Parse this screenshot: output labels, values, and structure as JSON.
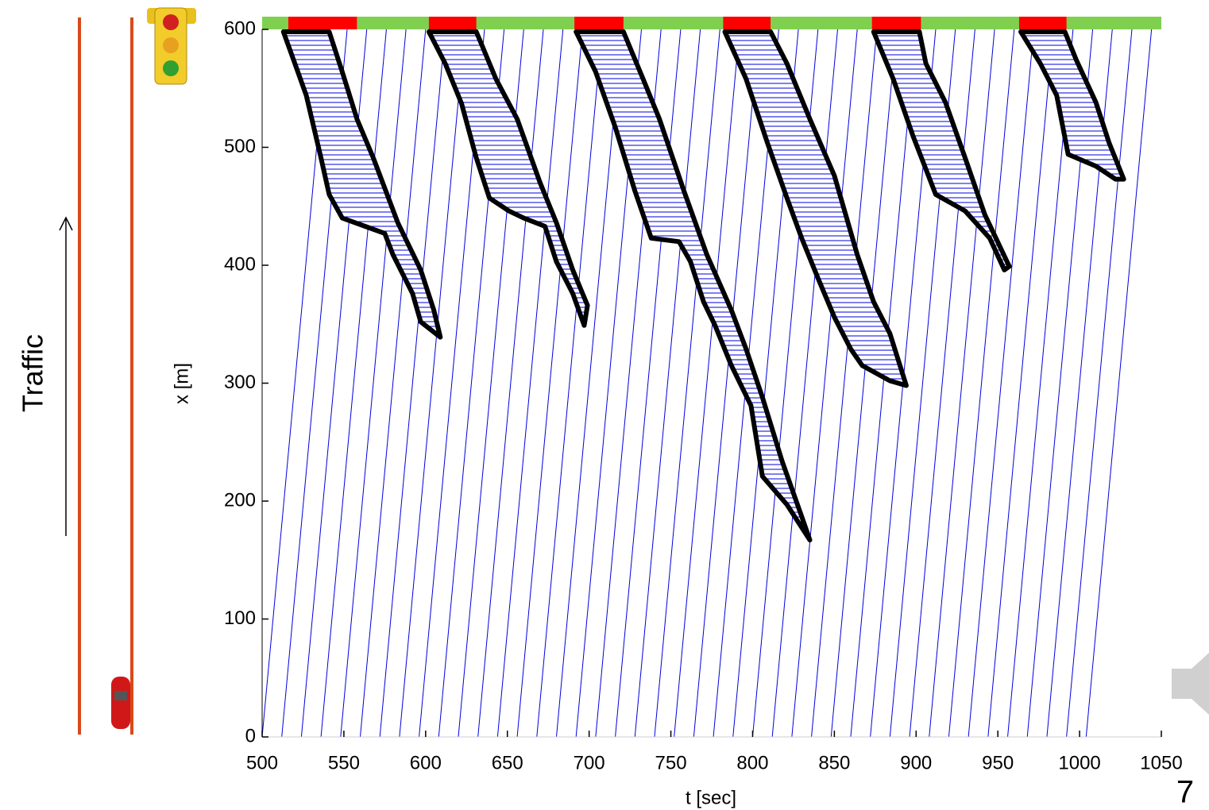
{
  "slide_number": "7",
  "side_label": "Traffic",
  "chart_data": {
    "type": "line",
    "xlabel": "t [sec]",
    "ylabel": "x [m]",
    "xlim": [
      500,
      1050
    ],
    "ylim": [
      0,
      600
    ],
    "xticks": [
      500,
      550,
      600,
      650,
      700,
      750,
      800,
      850,
      900,
      950,
      1000,
      1050
    ],
    "yticks": [
      0,
      100,
      200,
      300,
      400,
      500,
      600
    ],
    "trajectory_color": "#0000e0",
    "queue_color": "#000000",
    "green_color": "#80d050",
    "red_color": "#ff0000",
    "red_phases": [
      [
        516,
        558
      ],
      [
        602,
        631
      ],
      [
        691,
        721
      ],
      [
        782,
        811
      ],
      [
        873,
        903
      ],
      [
        963,
        992
      ]
    ],
    "trajectories": [
      {
        "t": [
          500,
          540
        ],
        "x": [
          0,
          600
        ]
      },
      {
        "t": [
          512,
          552
        ],
        "x": [
          0,
          600
        ]
      },
      {
        "t": [
          524,
          564
        ],
        "x": [
          0,
          600
        ]
      },
      {
        "t": [
          536,
          576
        ],
        "x": [
          0,
          600
        ]
      },
      {
        "t": [
          548,
          588
        ],
        "x": [
          0,
          600
        ]
      },
      {
        "t": [
          560,
          600
        ],
        "x": [
          0,
          600
        ]
      },
      {
        "t": [
          572,
          612
        ],
        "x": [
          0,
          600
        ]
      },
      {
        "t": [
          584,
          624
        ],
        "x": [
          0,
          600
        ]
      },
      {
        "t": [
          596,
          636
        ],
        "x": [
          0,
          600
        ]
      },
      {
        "t": [
          608,
          648
        ],
        "x": [
          0,
          600
        ]
      },
      {
        "t": [
          620,
          660
        ],
        "x": [
          0,
          600
        ]
      },
      {
        "t": [
          632,
          672
        ],
        "x": [
          0,
          600
        ]
      },
      {
        "t": [
          644,
          684
        ],
        "x": [
          0,
          600
        ]
      },
      {
        "t": [
          656,
          696
        ],
        "x": [
          0,
          600
        ]
      },
      {
        "t": [
          668,
          708
        ],
        "x": [
          0,
          600
        ]
      },
      {
        "t": [
          680,
          720
        ],
        "x": [
          0,
          600
        ]
      },
      {
        "t": [
          692,
          732
        ],
        "x": [
          0,
          600
        ]
      },
      {
        "t": [
          704,
          744
        ],
        "x": [
          0,
          600
        ]
      },
      {
        "t": [
          716,
          756
        ],
        "x": [
          0,
          600
        ]
      },
      {
        "t": [
          728,
          768
        ],
        "x": [
          0,
          600
        ]
      },
      {
        "t": [
          740,
          780
        ],
        "x": [
          0,
          600
        ]
      },
      {
        "t": [
          752,
          792
        ],
        "x": [
          0,
          600
        ]
      },
      {
        "t": [
          764,
          804
        ],
        "x": [
          0,
          600
        ]
      },
      {
        "t": [
          776,
          816
        ],
        "x": [
          0,
          600
        ]
      },
      {
        "t": [
          788,
          828
        ],
        "x": [
          0,
          600
        ]
      },
      {
        "t": [
          800,
          840
        ],
        "x": [
          0,
          600
        ]
      },
      {
        "t": [
          812,
          852
        ],
        "x": [
          0,
          600
        ]
      },
      {
        "t": [
          824,
          864
        ],
        "x": [
          0,
          600
        ]
      },
      {
        "t": [
          836,
          876
        ],
        "x": [
          0,
          600
        ]
      },
      {
        "t": [
          848,
          888
        ],
        "x": [
          0,
          600
        ]
      },
      {
        "t": [
          860,
          900
        ],
        "x": [
          0,
          600
        ]
      },
      {
        "t": [
          872,
          912
        ],
        "x": [
          0,
          600
        ]
      },
      {
        "t": [
          884,
          924
        ],
        "x": [
          0,
          600
        ]
      },
      {
        "t": [
          896,
          936
        ],
        "x": [
          0,
          600
        ]
      },
      {
        "t": [
          908,
          948
        ],
        "x": [
          0,
          600
        ]
      },
      {
        "t": [
          920,
          960
        ],
        "x": [
          0,
          600
        ]
      },
      {
        "t": [
          932,
          972
        ],
        "x": [
          0,
          600
        ]
      },
      {
        "t": [
          944,
          984
        ],
        "x": [
          0,
          600
        ]
      },
      {
        "t": [
          956,
          996
        ],
        "x": [
          0,
          600
        ]
      },
      {
        "t": [
          968,
          1008
        ],
        "x": [
          0,
          600
        ]
      },
      {
        "t": [
          980,
          1020
        ],
        "x": [
          0,
          600
        ]
      },
      {
        "t": [
          992,
          1032
        ],
        "x": [
          0,
          600
        ]
      },
      {
        "t": [
          1004,
          1044
        ],
        "x": [
          0,
          600
        ]
      }
    ],
    "queues": [
      {
        "t": [
          513,
          519,
          527,
          536,
          541,
          549,
          563,
          575,
          580,
          592,
          597,
          609,
          605,
          597,
          583,
          568,
          558,
          549,
          541
        ],
        "x": [
          598,
          575,
          544,
          491,
          460,
          440,
          433,
          427,
          409,
          376,
          352,
          339,
          362,
          396,
          436,
          491,
          524,
          564,
          598
        ]
      },
      {
        "t": [
          602,
          612,
          622,
          631,
          639,
          651,
          660,
          673,
          680,
          690,
          697,
          699,
          690,
          680,
          670,
          656,
          643,
          631
        ],
        "x": [
          598,
          571,
          537,
          491,
          457,
          446,
          440,
          433,
          403,
          376,
          349,
          366,
          396,
          436,
          470,
          524,
          558,
          598
        ]
      },
      {
        "t": [
          692,
          704,
          716,
          728,
          738,
          755,
          762,
          770,
          777,
          787,
          799,
          806,
          821,
          835,
          830,
          818,
          806,
          796,
          787,
          772,
          758,
          743,
          733,
          721
        ],
        "x": [
          598,
          564,
          517,
          463,
          423,
          420,
          403,
          369,
          349,
          315,
          281,
          221,
          197,
          167,
          187,
          234,
          288,
          329,
          362,
          409,
          463,
          524,
          558,
          598
        ]
      },
      {
        "t": [
          783,
          796,
          809,
          821,
          830,
          840,
          850,
          860,
          867,
          884,
          894,
          884,
          874,
          864,
          850,
          835,
          821,
          811
        ],
        "x": [
          598,
          558,
          504,
          457,
          423,
          389,
          356,
          329,
          315,
          302,
          298,
          342,
          369,
          409,
          476,
          524,
          571,
          598
        ]
      },
      {
        "t": [
          874,
          886,
          898,
          912,
          930,
          945,
          954,
          957,
          942,
          930,
          918,
          906,
          902
        ],
        "x": [
          598,
          558,
          510,
          460,
          446,
          423,
          396,
          399,
          443,
          491,
          538,
          571,
          598
        ]
      },
      {
        "t": [
          964,
          976,
          986,
          993,
          1010,
          1022,
          1027,
          1018,
          1010,
          998,
          991
        ],
        "x": [
          598,
          571,
          544,
          494,
          484,
          473,
          473,
          504,
          538,
          574,
          598
        ]
      }
    ]
  }
}
